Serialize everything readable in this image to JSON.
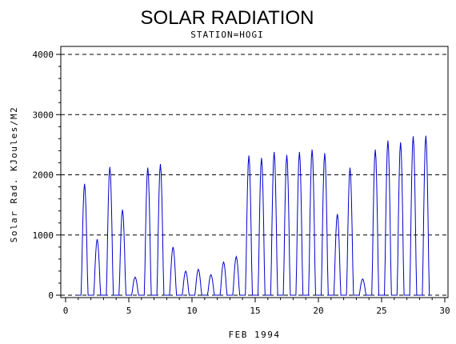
{
  "chart_data": {
    "type": "line",
    "title": "SOLAR RADIATION",
    "subtitle": "STATION=HOGI",
    "xlabel": "FEB 1994",
    "ylabel": "Solar Rad. KJoules/M2",
    "xlim": [
      0,
      30
    ],
    "ylim": [
      0,
      4000
    ],
    "x_ticks": [
      0,
      5,
      10,
      15,
      20,
      25,
      30
    ],
    "y_ticks": [
      0,
      1000,
      2000,
      3000,
      4000
    ],
    "grid": "horizontal-dashed",
    "legend": "none",
    "series_color": "#0000cc",
    "daily_peaks": [
      {
        "day": 1.5,
        "value": 1850
      },
      {
        "day": 2.5,
        "value": 930
      },
      {
        "day": 3.5,
        "value": 2130
      },
      {
        "day": 4.5,
        "value": 1420
      },
      {
        "day": 5.5,
        "value": 300
      },
      {
        "day": 6.5,
        "value": 2120
      },
      {
        "day": 7.5,
        "value": 2180
      },
      {
        "day": 8.5,
        "value": 800
      },
      {
        "day": 9.5,
        "value": 400
      },
      {
        "day": 10.5,
        "value": 430
      },
      {
        "day": 11.5,
        "value": 340
      },
      {
        "day": 12.5,
        "value": 550
      },
      {
        "day": 13.5,
        "value": 640
      },
      {
        "day": 14.5,
        "value": 2320
      },
      {
        "day": 15.5,
        "value": 2280
      },
      {
        "day": 16.5,
        "value": 2380
      },
      {
        "day": 17.5,
        "value": 2330
      },
      {
        "day": 18.5,
        "value": 2380
      },
      {
        "day": 19.5,
        "value": 2420
      },
      {
        "day": 20.5,
        "value": 2360
      },
      {
        "day": 21.5,
        "value": 1350
      },
      {
        "day": 22.5,
        "value": 2120
      },
      {
        "day": 23.5,
        "value": 270
      },
      {
        "day": 24.5,
        "value": 2420
      },
      {
        "day": 25.5,
        "value": 2570
      },
      {
        "day": 26.5,
        "value": 2540
      },
      {
        "day": 27.5,
        "value": 2640
      },
      {
        "day": 28.5,
        "value": 2650
      }
    ]
  }
}
